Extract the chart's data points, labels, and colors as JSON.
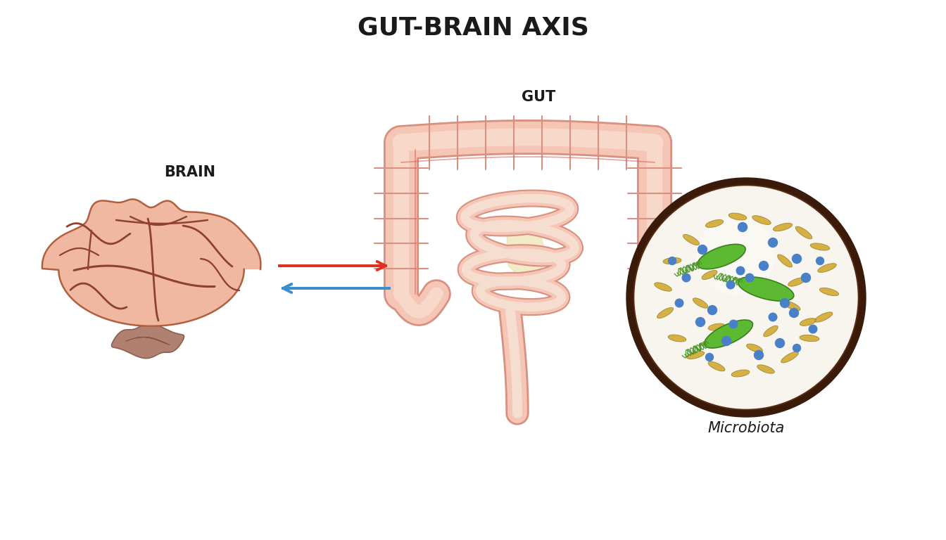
{
  "title": "GUT-BRAIN AXIS",
  "title_fontsize": 26,
  "title_fontweight": "bold",
  "title_color": "#1a1a1a",
  "label_brain": "BRAIN",
  "label_gut": "GUT",
  "label_microbiota": "Microbiota",
  "label_fontsize": 15,
  "label_fontweight": "bold",
  "background_color": "#ffffff",
  "brain_fill_color": "#f0b8a0",
  "brain_outline_color": "#b06040",
  "brain_sulci_color": "#904030",
  "brain_stem_fill": "#a07060",
  "brain_stem_line": "#7a5040",
  "gut_outer_fill": "#f5c5b5",
  "gut_outer_line": "#e8a898",
  "gut_inner_fill": "#f8d8c8",
  "gut_inner_line": "#e0a890",
  "gut_red_line": "#e06060",
  "gut_cream": "#f0e0b0",
  "microbiota_bg": "#f8f5ee",
  "microbiota_border": "#3a1a08",
  "microbiota_border_inner": "#5a2a10",
  "green_bacteria": "#5db832",
  "green_bacteria_dark": "#3a8020",
  "green_flagella": "#4a9828",
  "yellow_bacteria": "#d4b045",
  "yellow_bacteria_dark": "#a08830",
  "blue_dot": "#4a80c8",
  "blue_dot_chain": "#3a70b8",
  "arrow_red": "#e03020",
  "arrow_blue": "#3a90cc"
}
